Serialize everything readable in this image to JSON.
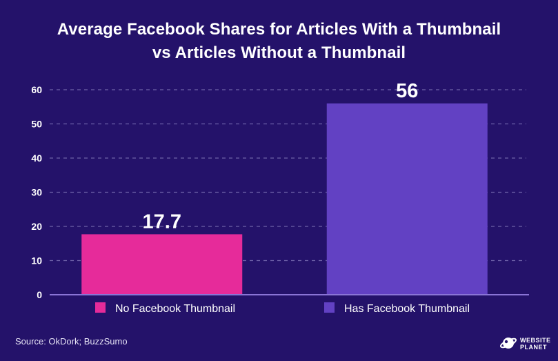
{
  "chart_data": {
    "type": "bar",
    "title_lines": [
      "Average Facebook Shares for Articles With a Thumbnail",
      "vs Articles Without a Thumbnail"
    ],
    "categories": [
      "No Facebook Thumbnail",
      "Has Facebook Thumbnail"
    ],
    "values": [
      17.7,
      56
    ],
    "value_labels": [
      "17.7",
      "56"
    ],
    "colors": [
      "#e62b9a",
      "#6241c3"
    ],
    "ylim": [
      0,
      60
    ],
    "yticks": [
      0,
      10,
      20,
      30,
      40,
      50,
      60
    ],
    "grid": true,
    "legend": "bottom"
  },
  "footer": {
    "source": "Source: OkDork; BuzzSumo",
    "logo_line1": "WEBSITE",
    "logo_line2": "PLANET"
  },
  "colors": {
    "background": "#24126a",
    "grid": "#6e62a8",
    "axis": "#8a74d6"
  }
}
